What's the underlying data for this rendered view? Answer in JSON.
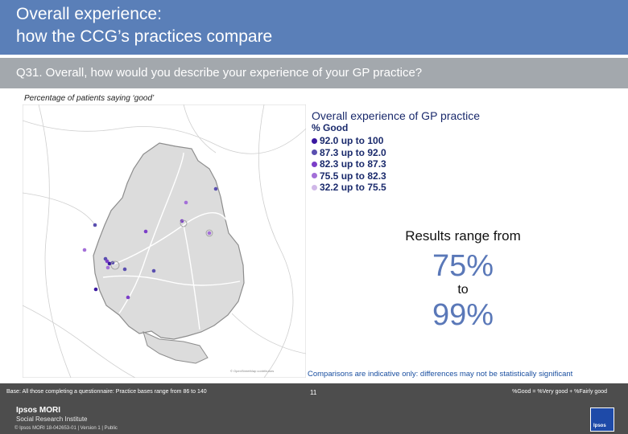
{
  "header": {
    "title_line1": "Overall experience:",
    "title_line2": "how the CCG’s practices compare"
  },
  "question": "Q31. Overall, how would you describe your experience of your GP practice?",
  "subtitle": "Percentage of patients saying ‘good’",
  "legend": {
    "title": "Overall experience of GP practice",
    "subtitle": "% Good",
    "items": [
      {
        "label": "92.0 up to 100",
        "color": "#3a18a0"
      },
      {
        "label": "87.3 up to 92.0",
        "color": "#5a4fb0"
      },
      {
        "label": "82.3 up to 87.3",
        "color": "#7b3ec8"
      },
      {
        "label": "75.5 up to 82.3",
        "color": "#a36fd8"
      },
      {
        "label": "32.2 up to 75.5",
        "color": "#d0b8e8"
      }
    ]
  },
  "results": {
    "label": "Results range from",
    "low": "75%",
    "to": "to",
    "high": "99%"
  },
  "comparison_note": "Comparisons are indicative only: differences may not be statistically significant",
  "base_note": "Base: All those completing a questionnaire: Practice bases range from 86 to 140",
  "good_definition": "%Good = %Very good + %Fairly good",
  "footer": {
    "logo_line1": "Ipsos MORI",
    "logo_line2": "Social Research Institute",
    "copyright": "© Ipsos MORI    18-042653-01 | Version 1 | Public",
    "page_number": "11",
    "ipsos_logo_text": "Ipsos"
  }
}
